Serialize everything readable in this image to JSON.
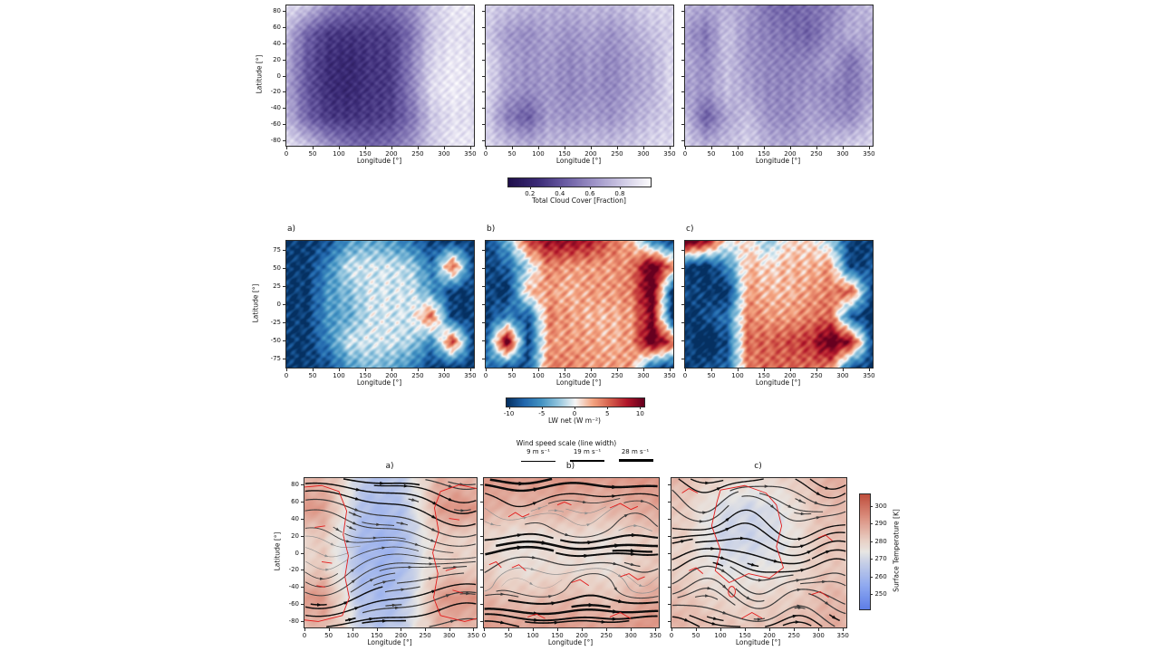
{
  "page": {
    "background": "#ffffff"
  },
  "chart_data": [
    {
      "id": "total-cloud-cover",
      "type": "heatmap",
      "xlabel": "Longitude [°]",
      "ylabel": "Latitude [°]",
      "xticks": [
        0,
        50,
        100,
        150,
        200,
        250,
        300,
        350
      ],
      "yticks": [
        80,
        60,
        40,
        20,
        0,
        -20,
        -40,
        -60,
        -80
      ],
      "xlim": [
        0,
        357
      ],
      "ylim": [
        -87,
        87
      ],
      "colorbar": {
        "label": "Total Cloud Cover [Fraction]",
        "ticks": [
          0.2,
          0.4,
          0.6,
          0.8
        ],
        "vmin": 0.05,
        "vmax": 1.0,
        "orientation": "horizontal",
        "colors": [
          [
            0,
            "#20104c"
          ],
          [
            0.2,
            "#3b2b76"
          ],
          [
            0.4,
            "#6b5da4"
          ],
          [
            0.6,
            "#9d93c7"
          ],
          [
            0.8,
            "#cec9e5"
          ],
          [
            1,
            "#fdfcfe"
          ]
        ]
      },
      "panels": [
        {
          "label": "",
          "values_grid": [
            [
              0.9,
              0.8,
              0.6,
              0.5,
              0.45,
              0.5,
              0.6,
              0.8,
              0.92,
              0.93
            ],
            [
              0.75,
              0.45,
              0.3,
              0.28,
              0.3,
              0.33,
              0.5,
              0.8,
              0.9,
              0.88
            ],
            [
              0.7,
              0.4,
              0.25,
              0.22,
              0.28,
              0.3,
              0.55,
              0.85,
              0.93,
              0.9
            ],
            [
              0.7,
              0.4,
              0.25,
              0.22,
              0.28,
              0.3,
              0.55,
              0.88,
              0.94,
              0.9
            ],
            [
              0.75,
              0.45,
              0.3,
              0.28,
              0.3,
              0.33,
              0.5,
              0.8,
              0.9,
              0.88
            ],
            [
              0.9,
              0.8,
              0.62,
              0.5,
              0.45,
              0.5,
              0.62,
              0.82,
              0.92,
              0.93
            ]
          ]
        },
        {
          "label": "",
          "values_grid": [
            [
              0.85,
              0.8,
              0.75,
              0.72,
              0.72,
              0.75,
              0.75,
              0.78,
              0.85,
              0.87
            ],
            [
              0.82,
              0.65,
              0.6,
              0.68,
              0.62,
              0.68,
              0.62,
              0.7,
              0.78,
              0.84
            ],
            [
              0.9,
              0.68,
              0.62,
              0.65,
              0.58,
              0.64,
              0.58,
              0.66,
              0.72,
              0.88
            ],
            [
              0.9,
              0.66,
              0.6,
              0.64,
              0.58,
              0.62,
              0.58,
              0.66,
              0.72,
              0.88
            ],
            [
              0.84,
              0.55,
              0.42,
              0.66,
              0.62,
              0.66,
              0.62,
              0.7,
              0.78,
              0.84
            ],
            [
              0.87,
              0.78,
              0.72,
              0.76,
              0.76,
              0.78,
              0.78,
              0.8,
              0.86,
              0.88
            ]
          ]
        },
        {
          "label": "",
          "values_grid": [
            [
              0.75,
              0.68,
              0.72,
              0.66,
              0.5,
              0.45,
              0.5,
              0.55,
              0.7,
              0.78
            ],
            [
              0.66,
              0.52,
              0.8,
              0.62,
              0.55,
              0.5,
              0.45,
              0.6,
              0.72,
              0.68
            ],
            [
              0.72,
              0.58,
              0.78,
              0.64,
              0.58,
              0.55,
              0.58,
              0.68,
              0.5,
              0.72
            ],
            [
              0.68,
              0.62,
              0.78,
              0.68,
              0.58,
              0.58,
              0.62,
              0.58,
              0.52,
              0.68
            ],
            [
              0.78,
              0.42,
              0.68,
              0.78,
              0.62,
              0.58,
              0.68,
              0.62,
              0.58,
              0.78
            ],
            [
              0.84,
              0.72,
              0.78,
              0.84,
              0.72,
              0.68,
              0.72,
              0.78,
              0.84,
              0.84
            ]
          ]
        }
      ]
    },
    {
      "id": "lw-net",
      "type": "heatmap",
      "xlabel": "Longitude [°]",
      "ylabel": "Latitude [°]",
      "xticks": [
        0,
        50,
        100,
        150,
        200,
        250,
        300,
        350
      ],
      "yticks": [
        75,
        50,
        25,
        0,
        -25,
        -50,
        -75
      ],
      "xlim": [
        0,
        357
      ],
      "ylim": [
        -87,
        87
      ],
      "colorbar": {
        "label": "LW net (W m⁻²)",
        "ticks": [
          -10,
          -5,
          0,
          5,
          10
        ],
        "vmin": -10.5,
        "vmax": 10.5,
        "orientation": "horizontal",
        "colors": [
          [
            0,
            "#053061"
          ],
          [
            0.125,
            "#2166ac"
          ],
          [
            0.25,
            "#4393c3"
          ],
          [
            0.375,
            "#92c5de"
          ],
          [
            0.5,
            "#f7f7f7"
          ],
          [
            0.625,
            "#f4a582"
          ],
          [
            0.75,
            "#d6604d"
          ],
          [
            0.875,
            "#b2182b"
          ],
          [
            1,
            "#67001f"
          ]
        ]
      },
      "panels": [
        {
          "label": "a)",
          "values_grid": [
            [
              -10,
              -10,
              -9,
              -5,
              -4,
              -5,
              -7,
              -10,
              -10,
              -10
            ],
            [
              -10,
              -10,
              -6,
              -1,
              -1,
              -1,
              -2,
              -7,
              6,
              -10
            ],
            [
              -10,
              -10,
              -5,
              -3,
              -1,
              -1,
              -1,
              -5,
              -10,
              -10
            ],
            [
              -10,
              -10,
              -5,
              -4,
              -1,
              -1,
              -1,
              5,
              -10,
              -10
            ],
            [
              -10,
              -10,
              -6,
              -1,
              -1,
              -1,
              -2,
              -6,
              7,
              -10
            ],
            [
              -10,
              -10,
              -9,
              -5,
              -3,
              -4,
              -6,
              -10,
              -10,
              -10
            ]
          ]
        },
        {
          "label": "b)",
          "values_grid": [
            [
              -10,
              -4,
              6,
              9,
              9,
              8,
              5,
              2,
              -6,
              -10
            ],
            [
              -10,
              -8,
              -2,
              4,
              3,
              3,
              3,
              4,
              12,
              4
            ],
            [
              -9,
              -11,
              2,
              3,
              2,
              3,
              3,
              4,
              12,
              -11
            ],
            [
              -10,
              -6,
              -9,
              4,
              3,
              2,
              2,
              3,
              10,
              -11
            ],
            [
              -8,
              12,
              -10,
              3,
              3,
              3,
              2,
              3,
              12,
              6
            ],
            [
              -7,
              -9,
              -9,
              4,
              4,
              3,
              3,
              3,
              -8,
              -10
            ]
          ]
        },
        {
          "label": "c)",
          "values_grid": [
            [
              12,
              9,
              0,
              1,
              -3,
              1,
              1,
              -2,
              -10,
              -10
            ],
            [
              -10,
              -11,
              -6,
              2,
              1,
              2,
              2,
              3,
              -10,
              -9
            ],
            [
              -9,
              -10,
              -11,
              3,
              2,
              2,
              3,
              4,
              6,
              -10
            ],
            [
              -11,
              -9,
              -7,
              4,
              3,
              3,
              4,
              5,
              -9,
              -11
            ],
            [
              -9,
              -12,
              -9,
              5,
              5,
              6,
              7,
              12,
              9,
              -9
            ],
            [
              -10,
              -9,
              -8,
              4,
              5,
              5,
              5,
              4,
              -9,
              -10
            ]
          ]
        }
      ]
    },
    {
      "id": "surface-temperature-winds",
      "type": "heatmap+streamlines",
      "xlabel": "Longitude [°]",
      "ylabel": "Latitude [°]",
      "xticks": [
        0,
        50,
        100,
        150,
        200,
        250,
        300,
        350
      ],
      "yticks": [
        80,
        60,
        40,
        20,
        0,
        -20,
        -40,
        -60,
        -80
      ],
      "xlim": [
        0,
        357
      ],
      "ylim": [
        -87,
        87
      ],
      "colorbar": {
        "label": "Surface Temperature [K]",
        "ticks": [
          300,
          290,
          280,
          270,
          260,
          250
        ],
        "vmin": 242,
        "vmax": 307,
        "orientation": "vertical",
        "colors": [
          [
            0,
            "#5f7fe8"
          ],
          [
            0.2,
            "#8fa9f0"
          ],
          [
            0.4,
            "#c6cfe7"
          ],
          [
            0.5,
            "#e8e6e3"
          ],
          [
            0.6,
            "#e9d0c5"
          ],
          [
            0.8,
            "#dc9080"
          ],
          [
            1,
            "#c0503e"
          ]
        ]
      },
      "wind_legend": {
        "title": "Wind speed scale (line width)",
        "entries": [
          {
            "label": "9 m s⁻¹"
          },
          {
            "label": "19 m s⁻¹"
          },
          {
            "label": "28 m s⁻¹"
          }
        ]
      },
      "panels": [
        {
          "label": "a)",
          "flow_pattern": "corner-vortices",
          "contours": "red irregular contours near lon 85° and 275°",
          "values_grid": [
            [
              285,
              286,
              280,
              266,
              264,
              266,
              277,
              287,
              286,
              285
            ],
            [
              293,
              291,
              277,
              263,
              261,
              263,
              275,
              291,
              294,
              292
            ],
            [
              280,
              282,
              272,
              261,
              259,
              261,
              271,
              281,
              281,
              280
            ],
            [
              280,
              282,
              272,
              261,
              259,
              261,
              271,
              281,
              281,
              280
            ],
            [
              293,
              292,
              277,
              263,
              261,
              263,
              275,
              291,
              294,
              293
            ],
            [
              285,
              286,
              280,
              266,
              264,
              266,
              277,
              287,
              286,
              285
            ]
          ]
        },
        {
          "label": "b)",
          "flow_pattern": "zonal-jets",
          "contours": "scattered small red contour fragments",
          "values_grid": [
            [
              293,
              292,
              291,
              292,
              293,
              292,
              291,
              292,
              293,
              293
            ],
            [
              289,
              287,
              286,
              287,
              288,
              287,
              286,
              287,
              289,
              290
            ],
            [
              280,
              277,
              276,
              277,
              278,
              278,
              277,
              278,
              281,
              282
            ],
            [
              281,
              278,
              277,
              278,
              278,
              278,
              277,
              278,
              282,
              283
            ],
            [
              287,
              285,
              283,
              284,
              285,
              284,
              283,
              284,
              288,
              289
            ],
            [
              292,
              291,
              290,
              291,
              292,
              291,
              290,
              291,
              293,
              293
            ]
          ]
        },
        {
          "label": "c)",
          "flow_pattern": "wavy-zonal",
          "contours": "large red contour loop around cool central region",
          "values_grid": [
            [
              287,
              284,
              281,
              279,
              278,
              279,
              281,
              284,
              288,
              288
            ],
            [
              284,
              280,
              274,
              271,
              270,
              271,
              275,
              281,
              285,
              285
            ],
            [
              282,
              279,
              272,
              269,
              269,
              270,
              274,
              280,
              284,
              283
            ],
            [
              281,
              279,
              275,
              273,
              273,
              274,
              276,
              280,
              283,
              282
            ],
            [
              285,
              283,
              280,
              279,
              279,
              280,
              281,
              283,
              286,
              286
            ],
            [
              287,
              286,
              284,
              283,
              283,
              284,
              285,
              286,
              288,
              288
            ]
          ]
        }
      ]
    }
  ]
}
